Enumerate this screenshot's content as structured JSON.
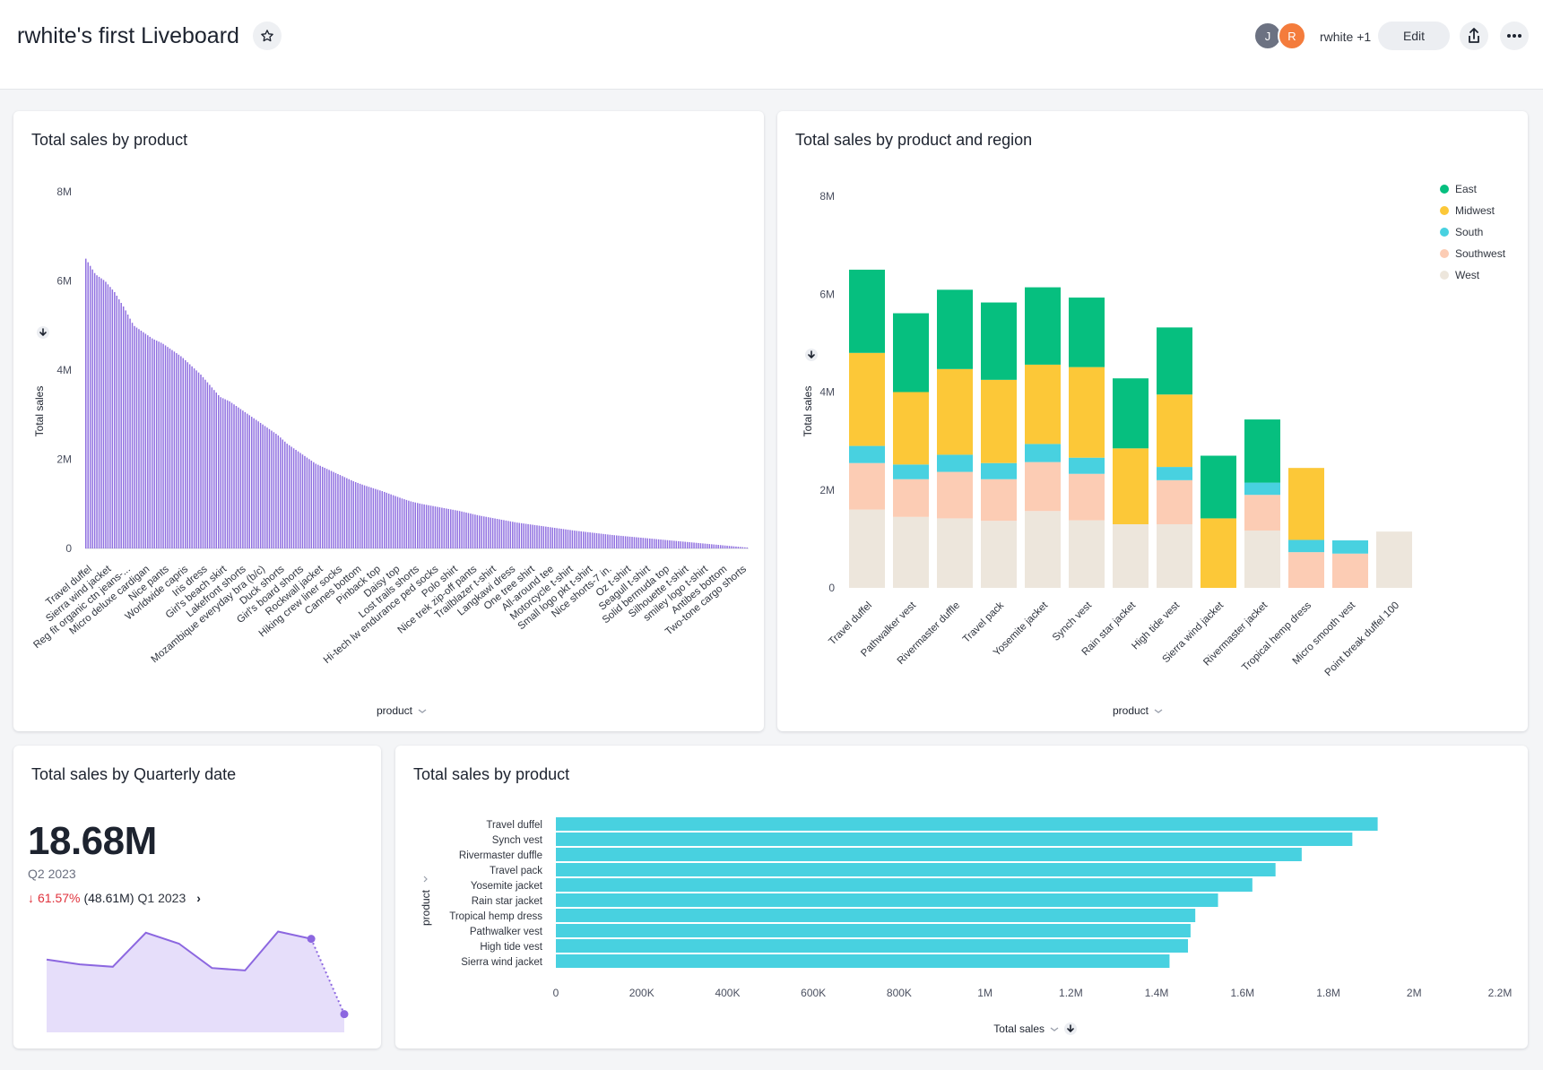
{
  "header": {
    "title": "rwhite's first Liveboard",
    "avatars": [
      {
        "initial": "J",
        "color": "#6c7282"
      },
      {
        "initial": "R",
        "color": "#f47c3c"
      }
    ],
    "owner_label": "rwhite +1",
    "edit_label": "Edit"
  },
  "cards": {
    "sales_by_product": {
      "title": "Total sales by product"
    },
    "sales_by_product_region": {
      "title": "Total sales by product and region"
    },
    "sales_by_quarter": {
      "title": "Total sales by Quarterly date"
    },
    "sales_by_product_bar": {
      "title": "Total sales by product"
    }
  },
  "kpi": {
    "value": "18.68M",
    "period": "Q2 2023",
    "change_pct": "61.57%",
    "compare_value": "(48.61M)",
    "compare_period": "Q1 2023"
  },
  "chart_data": [
    {
      "type": "bar",
      "title": "Total sales by product",
      "xlabel": "product",
      "ylabel": "Total sales",
      "ylim": [
        0,
        8000000
      ],
      "yticks": [
        "0",
        "2M",
        "4M",
        "6M",
        "8M"
      ],
      "bar_color": "#8f6fe0",
      "shown_category_labels": [
        "Travel duffel",
        "Sierra wind jacket",
        "Reg fit organic ctn jeans-...",
        "Micro deluxe cardigan",
        "Nice pants",
        "Worldwide capris",
        "Iris dress",
        "Girl's beach skirt",
        "Lakefront shorts",
        "Mozambique everyday bra (b/c)",
        "Duck shorts",
        "Girl's board shorts",
        "Rockwall jacket",
        "Hiking crew liner socks",
        "Cannes bottom",
        "Pinback top",
        "Daisy top",
        "Lost trails shorts",
        "Hi-tech lw endurance ped socks",
        "Polo shirt",
        "Nice trek zip-off pants",
        "Trailblazer t-shirt",
        "Langkawi dress",
        "One tree shirt",
        "All-around tee",
        "Motorcycle t-shirt",
        "Small logo pkt t-shirt",
        "Nice shorts-7 in.",
        "Oz t-shirt",
        "Seagull t-shirt",
        "Solid bermuda top",
        "Silhouette t-shirt",
        "smiley logo t-shirt",
        "Antibes bottom",
        "Two-tone cargo shorts"
      ],
      "bar_count": 300,
      "values_profile": [
        6500000,
        6150000,
        6000000,
        5750000,
        5400000,
        5000000,
        4850000,
        4700000,
        4600000,
        4450000,
        4300000,
        4100000,
        3900000,
        3650000,
        3400000,
        3300000,
        3150000,
        3000000,
        2850000,
        2700000,
        2550000,
        2350000,
        2200000,
        2050000,
        1900000,
        1800000,
        1700000,
        1600000,
        1500000,
        1420000,
        1350000,
        1280000,
        1200000,
        1120000,
        1050000,
        1000000,
        960000,
        920000,
        880000,
        840000,
        790000,
        740000,
        700000,
        660000,
        620000,
        580000,
        550000,
        520000,
        490000,
        460000,
        430000,
        400000,
        375000,
        350000,
        325000,
        300000,
        280000,
        260000,
        240000,
        220000,
        200000,
        180000,
        160000,
        140000,
        120000,
        100000,
        80000,
        60000,
        40000,
        20000
      ]
    },
    {
      "type": "bar",
      "stacked": true,
      "title": "Total sales by product and region",
      "xlabel": "product",
      "ylabel": "Total sales",
      "ylim": [
        0,
        8000000
      ],
      "yticks": [
        "0",
        "2M",
        "4M",
        "6M",
        "8M"
      ],
      "legend_position": "top-right",
      "categories": [
        "Travel duffel",
        "Pathwalker vest",
        "Rivermaster duffle",
        "Travel pack",
        "Yosemite jacket",
        "Synch vest",
        "Rain star jacket",
        "High tide vest",
        "Sierra wind jacket",
        "Rivermaster jacket",
        "Tropical hemp dress",
        "Micro smooth vest",
        "Point break duffel 100"
      ],
      "series": [
        {
          "name": "West",
          "color": "#ede6dc",
          "values": [
            1600000,
            1450000,
            1420000,
            1370000,
            1570000,
            1380000,
            1300000,
            1300000,
            0,
            1170000,
            0,
            0,
            1150000
          ]
        },
        {
          "name": "Southwest",
          "color": "#fcccb4",
          "values": [
            950000,
            770000,
            950000,
            850000,
            1000000,
            950000,
            0,
            900000,
            0,
            730000,
            730000,
            700000,
            0
          ]
        },
        {
          "name": "South",
          "color": "#48d1e0",
          "values": [
            350000,
            300000,
            350000,
            330000,
            370000,
            330000,
            0,
            270000,
            0,
            250000,
            250000,
            270000,
            0
          ]
        },
        {
          "name": "Midwest",
          "color": "#fcc838",
          "values": [
            1900000,
            1480000,
            1750000,
            1700000,
            1620000,
            1850000,
            1550000,
            1480000,
            1420000,
            0,
            1470000,
            0,
            0
          ]
        },
        {
          "name": "East",
          "color": "#06bf7f",
          "values": [
            1700000,
            1610000,
            1620000,
            1580000,
            1580000,
            1420000,
            1430000,
            1370000,
            1280000,
            1290000,
            0,
            0,
            0
          ]
        }
      ]
    },
    {
      "type": "area",
      "title": "Total sales by Quarterly date",
      "line_color": "#8c67e0",
      "fill_color": "#e6defa",
      "values": [
        6.0,
        5.6,
        5.4,
        8.2,
        7.3,
        5.3,
        5.1,
        8.3,
        7.7,
        1.5
      ]
    },
    {
      "type": "bar",
      "orientation": "horizontal",
      "title": "Total sales by product",
      "xlabel": "Total sales",
      "ylabel": "product",
      "xlim": [
        0,
        2200000
      ],
      "xticks": [
        "0",
        "200K",
        "400K",
        "600K",
        "800K",
        "1M",
        "1.2M",
        "1.4M",
        "1.6M",
        "1.8M",
        "2M",
        "2.2M"
      ],
      "bar_color": "#48d1e0",
      "categories": [
        "Travel duffel",
        "Synch vest",
        "Rivermaster duffle",
        "Travel pack",
        "Yosemite jacket",
        "Rain star jacket",
        "Tropical hemp dress",
        "Pathwalker vest",
        "High tide vest",
        "Sierra wind jacket"
      ],
      "values": [
        1915000,
        1856000,
        1738000,
        1677000,
        1623000,
        1543000,
        1490000,
        1479000,
        1473000,
        1430000
      ]
    }
  ]
}
